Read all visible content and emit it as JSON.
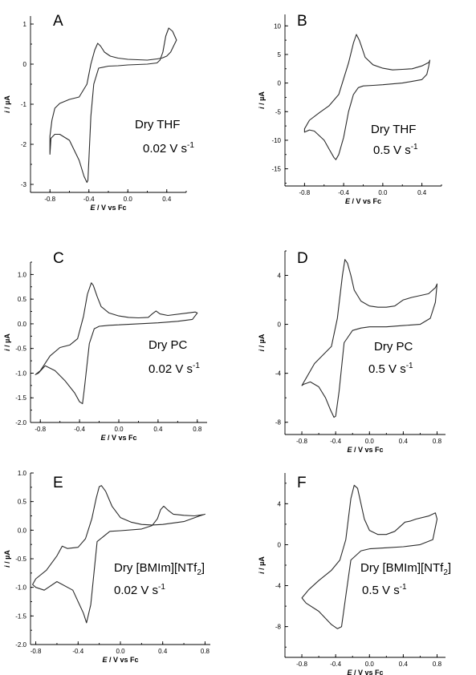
{
  "chart_data": [
    {
      "panel": "A",
      "type": "line",
      "solvent": "Dry THF",
      "rate_value": "0.02 V s",
      "rate_exp": "-1",
      "xlabel_italic": "E",
      "xlabel_rest": " / V vs Fc",
      "ylabel_italic": "i",
      "ylabel_rest": " / µA",
      "xlim": [
        -1.0,
        0.6
      ],
      "ylim": [
        -3.2,
        1.2
      ],
      "xticks": [
        -0.8,
        -0.4,
        0.0,
        0.4
      ],
      "xtick_labels": [
        "-0.8",
        "-0.4",
        "0.0",
        "0.4"
      ],
      "yticks": [
        -3,
        -2,
        -1,
        0,
        1
      ],
      "ytick_labels": [
        "-3",
        "-2",
        "-1",
        "0",
        "1"
      ],
      "series": [
        {
          "x": [
            0.0,
            0.2,
            0.3,
            0.33,
            0.36,
            0.39,
            0.42,
            0.46,
            0.5,
            0.47,
            0.44,
            0.4,
            0.35,
            0.3,
            0.2,
            0.1,
            0.0,
            -0.1,
            -0.18,
            -0.24,
            -0.28,
            -0.31,
            -0.34,
            -0.38,
            -0.42,
            -0.5,
            -0.6,
            -0.7,
            -0.75,
            -0.78,
            -0.8,
            -0.8,
            -0.79,
            -0.75,
            -0.7,
            -0.6,
            -0.5,
            -0.45,
            -0.42,
            -0.41,
            -0.4,
            -0.38,
            -0.35,
            -0.3,
            -0.2,
            -0.1,
            0.0
          ],
          "y": [
            -0.02,
            0.0,
            0.03,
            0.1,
            0.3,
            0.7,
            0.9,
            0.82,
            0.6,
            0.45,
            0.3,
            0.2,
            0.15,
            0.13,
            0.1,
            0.11,
            0.12,
            0.15,
            0.2,
            0.3,
            0.45,
            0.52,
            0.35,
            0.0,
            -0.5,
            -0.82,
            -0.88,
            -0.98,
            -1.1,
            -1.4,
            -1.8,
            -2.25,
            -1.85,
            -1.75,
            -1.75,
            -1.9,
            -2.4,
            -2.8,
            -2.95,
            -2.9,
            -2.4,
            -1.3,
            -0.5,
            -0.1,
            -0.05,
            -0.04,
            -0.02
          ]
        }
      ]
    },
    {
      "panel": "B",
      "type": "line",
      "solvent": "Dry THF",
      "rate_value": "0.5 V s",
      "rate_exp": "-1",
      "xlabel_italic": "E",
      "xlabel_rest": " / V vs Fc",
      "ylabel_italic": "i",
      "ylabel_rest": " / µA",
      "xlim": [
        -1.0,
        0.6
      ],
      "ylim": [
        -18,
        12
      ],
      "xticks": [
        -0.8,
        -0.4,
        0.0,
        0.4
      ],
      "xtick_labels": [
        "-0.8",
        "-0.4",
        "0.0",
        "0.4"
      ],
      "yticks": [
        -15,
        -10,
        -5,
        0,
        5,
        10
      ],
      "ytick_labels": [
        "-15",
        "-10",
        "-5",
        "0",
        "5",
        "10"
      ],
      "series": [
        {
          "x": [
            0.0,
            0.2,
            0.4,
            0.45,
            0.47,
            0.48,
            0.48,
            0.47,
            0.4,
            0.3,
            0.2,
            0.1,
            0.0,
            -0.1,
            -0.18,
            -0.22,
            -0.24,
            -0.27,
            -0.3,
            -0.35,
            -0.45,
            -0.55,
            -0.65,
            -0.75,
            -0.8,
            -0.8,
            -0.75,
            -0.7,
            -0.6,
            -0.55,
            -0.5,
            -0.48,
            -0.45,
            -0.4,
            -0.35,
            -0.3,
            -0.25,
            -0.2,
            -0.1,
            0.0
          ],
          "y": [
            -0.3,
            0.0,
            0.6,
            1.5,
            3.0,
            4.0,
            3.9,
            3.6,
            3.0,
            2.5,
            2.4,
            2.3,
            2.6,
            3.2,
            4.5,
            6.5,
            7.5,
            8.5,
            7.0,
            3.5,
            -2.0,
            -4.0,
            -5.2,
            -6.5,
            -8.0,
            -8.6,
            -8.2,
            -8.4,
            -10.0,
            -11.5,
            -13.0,
            -13.4,
            -12.5,
            -9.5,
            -5.0,
            -2.0,
            -0.8,
            -0.5,
            -0.4,
            -0.3
          ]
        }
      ]
    },
    {
      "panel": "C",
      "type": "line",
      "solvent": "Dry PC",
      "rate_value": "0.02 V s",
      "rate_exp": "-1",
      "xlabel_italic": "E",
      "xlabel_rest": " / V vs Fc",
      "ylabel_italic": "i",
      "ylabel_rest": " / µA",
      "xlim": [
        -0.9,
        0.9
      ],
      "ylim": [
        -2.0,
        1.25
      ],
      "xticks": [
        -0.8,
        -0.4,
        0.0,
        0.4,
        0.8
      ],
      "xtick_labels": [
        "-0.8",
        "-0.4",
        "0.0",
        "0.4",
        "0.8"
      ],
      "yticks": [
        -2.0,
        -1.5,
        -1.0,
        -0.5,
        0.0,
        0.5,
        1.0
      ],
      "ytick_labels": [
        "-2.0",
        "-1.5",
        "-1.0",
        "-0.5",
        "0.0",
        "0.5",
        "1.0"
      ],
      "series": [
        {
          "x": [
            0.0,
            0.2,
            0.4,
            0.6,
            0.75,
            0.8,
            0.78,
            0.7,
            0.5,
            0.42,
            0.38,
            0.34,
            0.3,
            0.2,
            0.1,
            0.0,
            -0.1,
            -0.18,
            -0.22,
            -0.26,
            -0.28,
            -0.32,
            -0.36,
            -0.42,
            -0.5,
            -0.6,
            -0.7,
            -0.8,
            -0.85,
            -0.82,
            -0.75,
            -0.65,
            -0.55,
            -0.45,
            -0.4,
            -0.37,
            -0.35,
            -0.3,
            -0.25,
            -0.2,
            -0.1,
            0.0
          ],
          "y": [
            -0.02,
            0.0,
            0.02,
            0.05,
            0.09,
            0.22,
            0.24,
            0.22,
            0.17,
            0.2,
            0.26,
            0.2,
            0.13,
            0.12,
            0.13,
            0.16,
            0.22,
            0.35,
            0.55,
            0.78,
            0.83,
            0.6,
            0.15,
            -0.3,
            -0.43,
            -0.48,
            -0.65,
            -0.95,
            -1.03,
            -1.0,
            -0.85,
            -0.95,
            -1.15,
            -1.4,
            -1.58,
            -1.62,
            -1.3,
            -0.4,
            -0.1,
            -0.05,
            -0.03,
            -0.02
          ]
        }
      ]
    },
    {
      "panel": "D",
      "type": "line",
      "solvent": "Dry PC",
      "rate_value": "0.5 V s",
      "rate_exp": "-1",
      "xlabel_italic": "E",
      "xlabel_rest": " / V vs Fc",
      "ylabel_italic": "i",
      "ylabel_rest": " / µA",
      "xlim": [
        -1.0,
        0.9
      ],
      "ylim": [
        -9,
        6
      ],
      "xticks": [
        -0.8,
        -0.4,
        0.0,
        0.4,
        0.8
      ],
      "xtick_labels": [
        "-0.8",
        "-0.4",
        "0.0",
        "0.4",
        "0.8"
      ],
      "yticks": [
        -8,
        -4,
        0,
        4
      ],
      "ytick_labels": [
        "-8",
        "-4",
        "0",
        "4"
      ],
      "series": [
        {
          "x": [
            0.0,
            0.2,
            0.4,
            0.6,
            0.72,
            0.78,
            0.8,
            0.78,
            0.7,
            0.5,
            0.4,
            0.3,
            0.2,
            0.1,
            0.0,
            -0.1,
            -0.18,
            -0.22,
            -0.26,
            -0.29,
            -0.32,
            -0.38,
            -0.45,
            -0.55,
            -0.65,
            -0.75,
            -0.8,
            -0.78,
            -0.7,
            -0.6,
            -0.52,
            -0.46,
            -0.42,
            -0.4,
            -0.36,
            -0.3,
            -0.2,
            -0.1,
            0.0
          ],
          "y": [
            -0.2,
            -0.2,
            -0.1,
            0.0,
            0.5,
            1.8,
            3.3,
            3.0,
            2.5,
            2.2,
            2.0,
            1.5,
            1.4,
            1.4,
            1.5,
            1.9,
            2.8,
            4.0,
            5.0,
            5.3,
            4.0,
            0.5,
            -1.8,
            -2.5,
            -3.2,
            -4.4,
            -5.0,
            -4.9,
            -4.7,
            -5.1,
            -6.0,
            -7.0,
            -7.6,
            -7.5,
            -5.5,
            -1.5,
            -0.5,
            -0.3,
            -0.2
          ]
        }
      ]
    },
    {
      "panel": "E",
      "type": "line",
      "solvent": "Dry [BMIm][NTf",
      "solvent_sub": "2",
      "solvent_end": "]",
      "rate_value": "0.02 V s",
      "rate_exp": "-1",
      "xlabel_italic": "E",
      "xlabel_rest": " / V vs Fc",
      "ylabel_italic": "i",
      "ylabel_rest": " / µA",
      "xlim": [
        -0.85,
        0.85
      ],
      "ylim": [
        -2.0,
        1.0
      ],
      "xticks": [
        -0.8,
        -0.4,
        0.0,
        0.4,
        0.8
      ],
      "xtick_labels": [
        "-0.8",
        "-0.4",
        "0.0",
        "0.4",
        "0.8"
      ],
      "yticks": [
        -2.0,
        -1.5,
        -1.0,
        -0.5,
        0.0,
        0.5,
        1.0
      ],
      "ytick_labels": [
        "-2.0",
        "-1.5",
        "-1.0",
        "-0.5",
        "0.0",
        "0.5",
        "1.0"
      ],
      "series": [
        {
          "x": [
            -0.1,
            0.0,
            0.2,
            0.3,
            0.35,
            0.38,
            0.41,
            0.45,
            0.5,
            0.6,
            0.7,
            0.78,
            0.8,
            0.75,
            0.6,
            0.4,
            0.3,
            0.2,
            0.1,
            0.0,
            -0.08,
            -0.14,
            -0.18,
            -0.2,
            -0.23,
            -0.27,
            -0.33,
            -0.4,
            -0.5,
            -0.55,
            -0.6,
            -0.7,
            -0.8,
            -0.83,
            -0.8,
            -0.72,
            -0.6,
            -0.45,
            -0.35,
            -0.32,
            -0.28,
            -0.22,
            -0.1
          ],
          "y": [
            -0.02,
            -0.01,
            0.02,
            0.08,
            0.2,
            0.36,
            0.42,
            0.35,
            0.28,
            0.26,
            0.25,
            0.27,
            0.28,
            0.25,
            0.15,
            0.1,
            0.09,
            0.1,
            0.14,
            0.22,
            0.42,
            0.68,
            0.78,
            0.76,
            0.55,
            0.2,
            -0.15,
            -0.3,
            -0.32,
            -0.28,
            -0.45,
            -0.7,
            -0.85,
            -0.95,
            -1.0,
            -1.05,
            -0.9,
            -1.05,
            -1.45,
            -1.62,
            -1.3,
            -0.2,
            -0.02
          ]
        }
      ]
    },
    {
      "panel": "F",
      "type": "line",
      "solvent": "Dry [BMIm][NTf",
      "solvent_sub": "2",
      "solvent_end": "]",
      "rate_value": "0.5 V s",
      "rate_exp": "-1",
      "xlabel_italic": "E",
      "xlabel_rest": " / V vs Fc",
      "ylabel_italic": "i",
      "ylabel_rest": " / µA",
      "xlim": [
        -1.0,
        0.9
      ],
      "ylim": [
        -11,
        7
      ],
      "xticks": [
        -0.8,
        -0.4,
        0.0,
        0.4,
        0.8
      ],
      "xtick_labels": [
        "-0.8",
        "-0.4",
        "0.0",
        "0.4",
        "0.8"
      ],
      "yticks": [
        -8,
        -4,
        0,
        4
      ],
      "ytick_labels": [
        "-8",
        "-4",
        "0",
        "4"
      ],
      "series": [
        {
          "x": [
            0.0,
            0.2,
            0.4,
            0.6,
            0.75,
            0.8,
            0.78,
            0.7,
            0.55,
            0.48,
            0.42,
            0.3,
            0.2,
            0.1,
            0.0,
            -0.06,
            -0.1,
            -0.14,
            -0.18,
            -0.22,
            -0.28,
            -0.35,
            -0.45,
            -0.6,
            -0.72,
            -0.8,
            -0.75,
            -0.6,
            -0.45,
            -0.38,
            -0.33,
            -0.28,
            -0.22,
            -0.1,
            0.0
          ],
          "y": [
            -0.4,
            -0.3,
            -0.2,
            0.0,
            0.5,
            2.5,
            3.1,
            2.8,
            2.5,
            2.3,
            2.2,
            1.3,
            1.0,
            1.0,
            1.4,
            2.5,
            4.0,
            5.5,
            5.8,
            4.5,
            0.5,
            -1.5,
            -2.5,
            -3.5,
            -4.4,
            -5.2,
            -5.7,
            -6.5,
            -7.8,
            -8.2,
            -8.0,
            -5.0,
            -1.5,
            -0.6,
            -0.4
          ]
        }
      ]
    }
  ]
}
